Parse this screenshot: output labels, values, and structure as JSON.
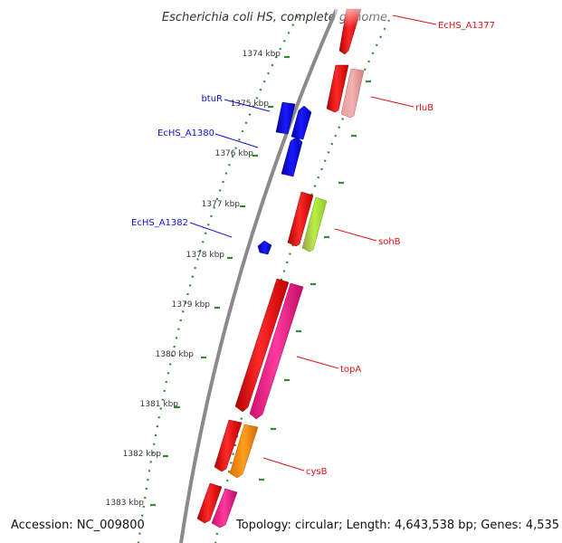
{
  "title": "Escherichia coli HS, complete genome",
  "accession_label": "Accession: NC_009800",
  "topology_label": "Topology: circular; Length: 4,643,538 bp; Genes: 4,535",
  "scale_ticks": [
    "1374 kbp",
    "1375 kbp",
    "1376 kbp",
    "1377 kbp",
    "1378 kbp",
    "1379 kbp",
    "1380 kbp",
    "1381 kbp",
    "1382 kbp",
    "1383 kbp"
  ],
  "genes": {
    "ecHS_A1377": "EcHS_A1377",
    "rluB": "rluB",
    "btuR": "btuR",
    "ecHS_A1380": "EcHS_A1380",
    "ecHS_A1382": "EcHS_A1382",
    "sohB": "sohB",
    "topA": "topA",
    "cysB": "cysB"
  },
  "colors": {
    "backbone": "#8a8a8a",
    "tick_dots": "#2e8b2e",
    "cds": "#ee1111",
    "rna_blue": "#1010ee",
    "rluB": "#f08080",
    "sohB": "#a6e83a",
    "topA": "#f0208c",
    "cysB": "#ff8c00",
    "label_red": "#dd1111",
    "label_blue": "#1111cc"
  }
}
